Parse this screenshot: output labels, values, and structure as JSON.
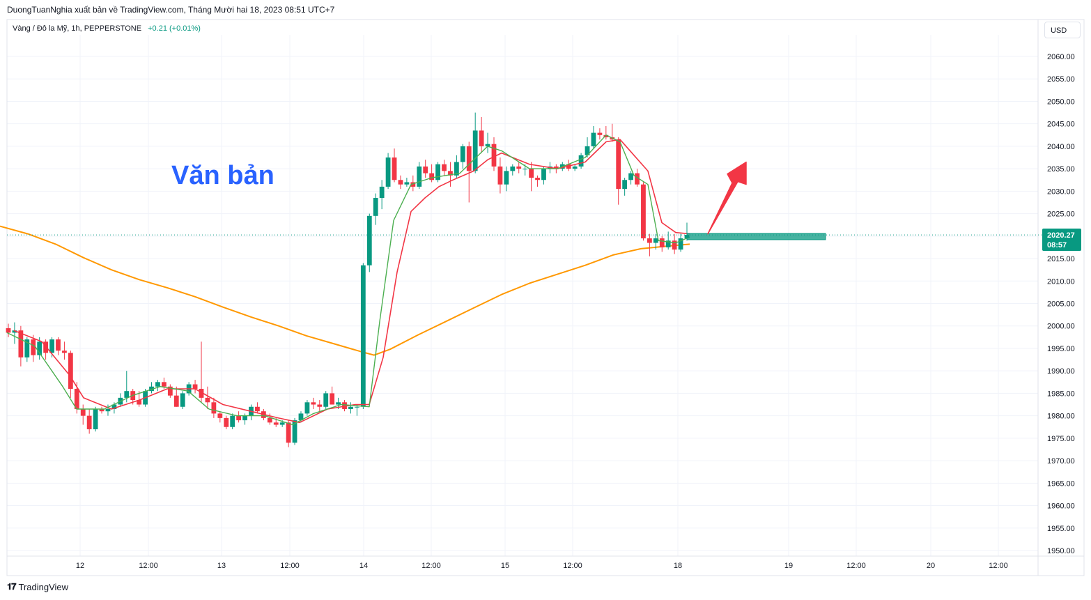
{
  "header": {
    "caption": "DuongTuanNghia xuất bản về TradingView.com, Tháng Mười hai 18, 2023 08:51 UTC+7",
    "symbol": "Vàng / Đô la Mỹ, 1h, PEPPERSTONE",
    "change": "+0.21 (+0.01%)",
    "currency": "USD"
  },
  "annotation": {
    "text": "Văn bản"
  },
  "last_price": {
    "value": "2020.27",
    "countdown": "08:57"
  },
  "brand": "TradingView",
  "colors": {
    "up": "#089981",
    "down": "#f23645",
    "ma_slow": "#ff9800",
    "ma_fast": "#f23645",
    "ma_faster": "#4caf50",
    "annotation": "#2962ff"
  },
  "chart_data": {
    "type": "candlestick",
    "ylim": [
      1948,
      2067
    ],
    "y_ticks": [
      "2060.00",
      "2055.00",
      "2050.00",
      "2045.00",
      "2040.00",
      "2035.00",
      "2030.00",
      "2025.00",
      "2020.00",
      "2015.00",
      "2010.00",
      "2005.00",
      "2000.00",
      "1995.00",
      "1990.00",
      "1985.00",
      "1980.00",
      "1975.00",
      "1970.00",
      "1965.00",
      "1960.00",
      "1955.00",
      "1950.00"
    ],
    "x_ticks": [
      "12",
      "12:00",
      "13",
      "12:00",
      "14",
      "12:00",
      "15",
      "12:00",
      "18",
      "19",
      "12:00",
      "20",
      "12:00"
    ],
    "candles": [
      [
        1999.5,
        2000.5,
        1997.5,
        1998.5
      ],
      [
        1998.5,
        2000.8,
        1996.0,
        1999.0
      ],
      [
        1999.0,
        2000.0,
        1991.0,
        1993.0
      ],
      [
        1993.0,
        1997.5,
        1992.0,
        1997.0
      ],
      [
        1997.0,
        1998.0,
        1992.0,
        1993.5
      ],
      [
        1993.5,
        1997.5,
        1992.5,
        1996.5
      ],
      [
        1996.5,
        1997.0,
        1992.5,
        1994.0
      ],
      [
        1994.0,
        1997.5,
        1993.0,
        1997.0
      ],
      [
        1997.0,
        1997.5,
        1993.5,
        1994.5
      ],
      [
        1994.5,
        1996.5,
        1992.5,
        1994.0
      ],
      [
        1994.0,
        1994.5,
        1984.0,
        1986.0
      ],
      [
        1986.0,
        1987.5,
        1980.5,
        1981.5
      ],
      [
        1981.5,
        1982.5,
        1978.0,
        1980.0
      ],
      [
        1980.0,
        1981.5,
        1976.0,
        1977.0
      ],
      [
        1977.0,
        1982.0,
        1976.5,
        1981.5
      ],
      [
        1981.5,
        1982.0,
        1980.5,
        1981.0
      ],
      [
        1981.0,
        1982.5,
        1980.0,
        1981.5
      ],
      [
        1981.5,
        1983.0,
        1980.5,
        1982.5
      ],
      [
        1982.5,
        1985.0,
        1982.0,
        1984.0
      ],
      [
        1984.0,
        1990.0,
        1983.0,
        1985.5
      ],
      [
        1985.5,
        1986.0,
        1982.5,
        1983.5
      ],
      [
        1983.5,
        1985.5,
        1982.0,
        1982.5
      ],
      [
        1982.5,
        1986.0,
        1982.0,
        1985.5
      ],
      [
        1985.5,
        1987.5,
        1985.0,
        1986.5
      ],
      [
        1986.5,
        1988.0,
        1985.5,
        1987.5
      ],
      [
        1987.5,
        1988.5,
        1986.0,
        1986.5
      ],
      [
        1986.5,
        1987.0,
        1984.0,
        1984.5
      ],
      [
        1984.5,
        1986.5,
        1982.0,
        1982.0
      ],
      [
        1982.0,
        1985.5,
        1981.5,
        1985.0
      ],
      [
        1985.0,
        1987.5,
        1984.5,
        1987.0
      ],
      [
        1987.0,
        1988.0,
        1985.0,
        1986.0
      ],
      [
        1986.0,
        1996.5,
        1983.0,
        1984.0
      ],
      [
        1984.0,
        1986.5,
        1981.5,
        1983.0
      ],
      [
        1983.0,
        1984.0,
        1979.5,
        1980.5
      ],
      [
        1980.5,
        1981.0,
        1978.5,
        1979.5
      ],
      [
        1979.5,
        1980.0,
        1977.0,
        1977.5
      ],
      [
        1977.5,
        1980.5,
        1977.0,
        1980.0
      ],
      [
        1980.0,
        1981.0,
        1978.5,
        1979.0
      ],
      [
        1979.0,
        1980.5,
        1978.0,
        1980.0
      ],
      [
        1980.0,
        1982.5,
        1979.0,
        1982.0
      ],
      [
        1982.0,
        1983.0,
        1980.5,
        1981.0
      ],
      [
        1981.0,
        1981.5,
        1979.0,
        1979.5
      ],
      [
        1979.5,
        1980.5,
        1978.0,
        1978.5
      ],
      [
        1978.5,
        1979.5,
        1977.5,
        1978.0
      ],
      [
        1978.0,
        1979.0,
        1977.5,
        1978.5
      ],
      [
        1978.5,
        1979.0,
        1973.0,
        1974.0
      ],
      [
        1974.0,
        1979.5,
        1973.5,
        1979.0
      ],
      [
        1979.0,
        1981.0,
        1978.5,
        1980.5
      ],
      [
        1980.5,
        1983.5,
        1980.0,
        1983.0
      ],
      [
        1983.0,
        1984.0,
        1981.5,
        1982.5
      ],
      [
        1982.5,
        1983.5,
        1981.0,
        1982.0
      ],
      [
        1982.0,
        1985.5,
        1981.5,
        1985.0
      ],
      [
        1985.0,
        1986.5,
        1983.0,
        1982.5
      ],
      [
        1982.5,
        1984.0,
        1981.5,
        1983.0
      ],
      [
        1983.0,
        1983.5,
        1981.0,
        1981.5
      ],
      [
        1981.5,
        1983.0,
        1980.5,
        1982.0
      ],
      [
        1982.0,
        1982.5,
        1980.0,
        1982.0
      ],
      [
        1982.0,
        2014.0,
        1981.5,
        2013.5
      ],
      [
        2013.5,
        2025.0,
        2012.0,
        2024.5
      ],
      [
        2024.5,
        2029.5,
        2022.5,
        2028.5
      ],
      [
        2028.5,
        2032.5,
        2026.0,
        2031.0
      ],
      [
        2031.0,
        2038.5,
        2030.5,
        2037.5
      ],
      [
        2037.5,
        2039.5,
        2032.0,
        2032.5
      ],
      [
        2032.5,
        2033.5,
        2030.5,
        2031.5
      ],
      [
        2031.5,
        2033.0,
        2031.0,
        2032.0
      ],
      [
        2032.0,
        2033.5,
        2030.0,
        2031.0
      ],
      [
        2031.0,
        2036.5,
        2030.5,
        2035.5
      ],
      [
        2035.5,
        2037.0,
        2033.0,
        2034.0
      ],
      [
        2034.0,
        2036.0,
        2032.0,
        2032.5
      ],
      [
        2032.5,
        2036.5,
        2032.0,
        2036.0
      ],
      [
        2036.0,
        2037.0,
        2033.5,
        2034.5
      ],
      [
        2034.5,
        2036.5,
        2031.0,
        2033.5
      ],
      [
        2033.5,
        2038.0,
        2033.0,
        2036.5
      ],
      [
        2036.5,
        2040.5,
        2035.0,
        2040.0
      ],
      [
        2040.0,
        2041.0,
        2027.5,
        2034.5
      ],
      [
        2034.5,
        2047.5,
        2034.0,
        2043.5
      ],
      [
        2043.5,
        2046.5,
        2038.5,
        2040.0
      ],
      [
        2040.0,
        2043.0,
        2038.5,
        2040.5
      ],
      [
        2040.5,
        2042.0,
        2034.5,
        2035.5
      ],
      [
        2035.5,
        2037.5,
        2029.5,
        2031.5
      ],
      [
        2031.5,
        2035.5,
        2030.0,
        2034.5
      ],
      [
        2034.5,
        2036.0,
        2033.5,
        2035.5
      ],
      [
        2035.5,
        2036.5,
        2034.0,
        2035.0
      ],
      [
        2035.0,
        2036.0,
        2033.5,
        2035.0
      ],
      [
        2035.0,
        2036.5,
        2030.0,
        2033.0
      ],
      [
        2033.0,
        2033.5,
        2031.0,
        2032.5
      ],
      [
        2032.5,
        2035.5,
        2031.5,
        2035.0
      ],
      [
        2035.0,
        2036.5,
        2034.0,
        2035.5
      ],
      [
        2035.5,
        2036.0,
        2034.0,
        2035.0
      ],
      [
        2035.0,
        2036.5,
        2034.5,
        2036.0
      ],
      [
        2036.0,
        2037.0,
        2034.5,
        2035.0
      ],
      [
        2035.0,
        2036.0,
        2034.5,
        2035.5
      ],
      [
        2035.5,
        2038.5,
        2035.0,
        2038.0
      ],
      [
        2038.0,
        2042.0,
        2037.5,
        2040.0
      ],
      [
        2040.0,
        2044.5,
        2039.5,
        2043.0
      ],
      [
        2043.0,
        2044.0,
        2041.5,
        2042.5
      ],
      [
        2042.5,
        2044.5,
        2041.5,
        2042.0
      ],
      [
        2042.0,
        2045.0,
        2041.0,
        2041.5
      ],
      [
        2041.5,
        2042.0,
        2027.0,
        2030.5
      ],
      [
        2030.5,
        2033.0,
        2029.0,
        2032.5
      ],
      [
        2032.5,
        2034.5,
        2031.5,
        2034.0
      ],
      [
        2034.0,
        2035.0,
        2031.0,
        2031.5
      ],
      [
        2031.5,
        2032.0,
        2019.0,
        2019.5
      ],
      [
        2019.5,
        2020.5,
        2015.5,
        2018.5
      ],
      [
        2018.5,
        2020.5,
        2017.0,
        2019.5
      ],
      [
        2019.5,
        2020.0,
        2016.5,
        2017.5
      ],
      [
        2017.5,
        2021.0,
        2017.0,
        2019.0
      ],
      [
        2019.0,
        2020.5,
        2016.0,
        2017.0
      ],
      [
        2017.0,
        2020.5,
        2016.5,
        2019.5
      ],
      [
        2019.5,
        2023.0,
        2019.0,
        2020.27
      ]
    ],
    "series": [
      {
        "name": "",
        "color": "#ff9800"
      },
      {
        "name": "",
        "color": "#f23645"
      },
      {
        "name": "",
        "color": "#4caf50"
      }
    ],
    "ma_slow": [
      [
        0,
        2022.2
      ],
      [
        40,
        2020.5
      ],
      [
        80,
        2018.2
      ],
      [
        120,
        2015.2
      ],
      [
        160,
        2012.5
      ],
      [
        200,
        2010.3
      ],
      [
        240,
        2008.5
      ],
      [
        280,
        2006.5
      ],
      [
        320,
        2004.2
      ],
      [
        360,
        2002.0
      ],
      [
        400,
        2000.0
      ],
      [
        440,
        1997.8
      ],
      [
        480,
        1996.0
      ],
      [
        520,
        1994.2
      ],
      [
        537,
        1993.5
      ],
      [
        560,
        1994.8
      ],
      [
        600,
        1998.0
      ],
      [
        640,
        2001.0
      ],
      [
        680,
        2004.0
      ],
      [
        720,
        2007.0
      ],
      [
        760,
        2009.5
      ],
      [
        800,
        2011.5
      ],
      [
        840,
        2013.5
      ],
      [
        880,
        2015.8
      ],
      [
        920,
        2017.2
      ],
      [
        960,
        2017.8
      ],
      [
        990,
        2018.2
      ]
    ],
    "ma_fast": [
      [
        20,
        1999.0
      ],
      [
        60,
        1996.5
      ],
      [
        100,
        1989.0
      ],
      [
        120,
        1984.0
      ],
      [
        160,
        1981.5
      ],
      [
        200,
        1983.5
      ],
      [
        240,
        1986.0
      ],
      [
        280,
        1986.0
      ],
      [
        320,
        1982.5
      ],
      [
        360,
        1981.0
      ],
      [
        400,
        1979.5
      ],
      [
        430,
        1978.5
      ],
      [
        470,
        1981.5
      ],
      [
        510,
        1982.5
      ],
      [
        530,
        1982.5
      ],
      [
        550,
        1993.0
      ],
      [
        570,
        2012.0
      ],
      [
        590,
        2025.5
      ],
      [
        610,
        2028.5
      ],
      [
        630,
        2031.0
      ],
      [
        650,
        2032.5
      ],
      [
        680,
        2034.5
      ],
      [
        700,
        2037.0
      ],
      [
        720,
        2038.5
      ],
      [
        760,
        2036.0
      ],
      [
        800,
        2035.0
      ],
      [
        840,
        2036.5
      ],
      [
        870,
        2041.0
      ],
      [
        890,
        2041.5
      ],
      [
        910,
        2038.0
      ],
      [
        930,
        2034.5
      ],
      [
        950,
        2023.0
      ],
      [
        970,
        2020.8
      ],
      [
        990,
        2020.5
      ]
    ],
    "ma_faster": [
      [
        10,
        1998.5
      ],
      [
        50,
        1995.5
      ],
      [
        90,
        1986.5
      ],
      [
        110,
        1981.5
      ],
      [
        150,
        1981.5
      ],
      [
        190,
        1984.5
      ],
      [
        230,
        1986.5
      ],
      [
        270,
        1985.5
      ],
      [
        300,
        1981.5
      ],
      [
        340,
        1980.0
      ],
      [
        380,
        1980.0
      ],
      [
        420,
        1978.0
      ],
      [
        450,
        1980.5
      ],
      [
        490,
        1982.5
      ],
      [
        530,
        1982.0
      ],
      [
        545,
        2001.0
      ],
      [
        565,
        2023.5
      ],
      [
        590,
        2031.5
      ],
      [
        620,
        2033.0
      ],
      [
        660,
        2034.0
      ],
      [
        700,
        2040.0
      ],
      [
        720,
        2039.0
      ],
      [
        760,
        2035.0
      ],
      [
        800,
        2035.0
      ],
      [
        840,
        2037.5
      ],
      [
        870,
        2042.5
      ],
      [
        890,
        2041.0
      ],
      [
        910,
        2033.5
      ],
      [
        930,
        2031.5
      ],
      [
        945,
        2019.0
      ],
      [
        970,
        2018.5
      ],
      [
        990,
        2019.8
      ]
    ],
    "zone": {
      "y_low": 2019.2,
      "y_high": 2020.6
    },
    "arrow": {
      "from_price": 2020.5,
      "to_price": 2034.0
    }
  }
}
